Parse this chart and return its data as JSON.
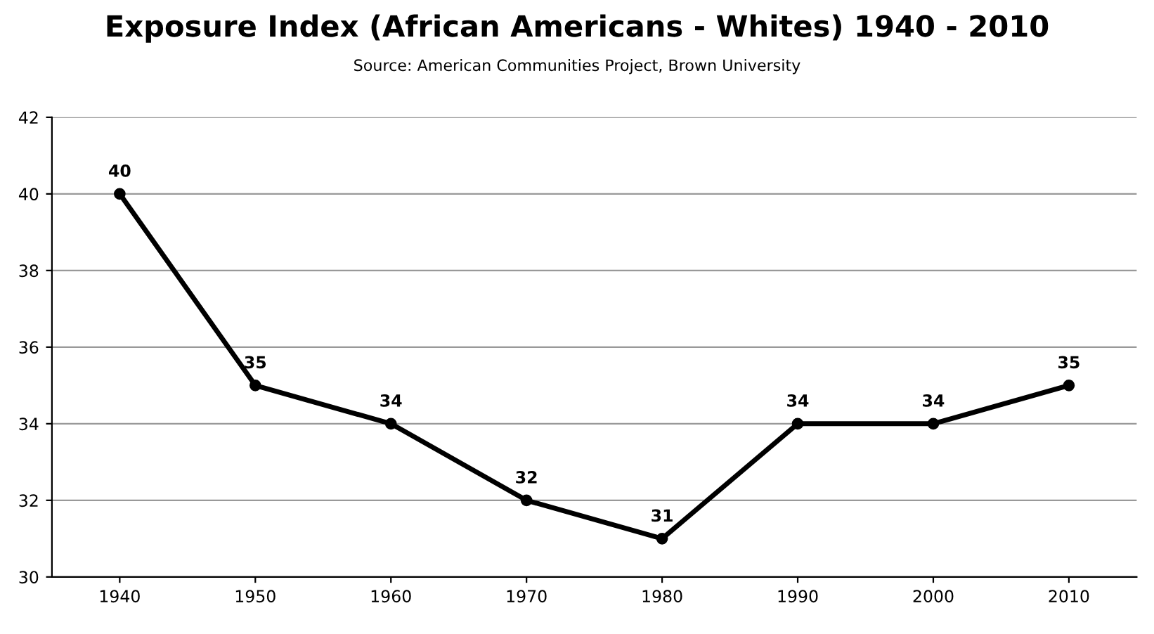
{
  "chart_data": {
    "type": "line",
    "title": "Exposure Index (African Americans - Whites) 1940 - 2010",
    "subtitle": "Source: American Communities Project, Brown University",
    "categories": [
      "1940",
      "1950",
      "1960",
      "1970",
      "1980",
      "1990",
      "2000",
      "2010"
    ],
    "series": [
      {
        "color": "#000000",
        "values": [
          40,
          35,
          34,
          32,
          31,
          34,
          34,
          35
        ]
      }
    ],
    "ylim": [
      30,
      42
    ],
    "yticks": [
      30,
      32,
      34,
      36,
      38,
      40,
      42
    ],
    "grid": "y",
    "data_labels": true,
    "marker": "circle",
    "line_style": "solid",
    "legend": false
  }
}
